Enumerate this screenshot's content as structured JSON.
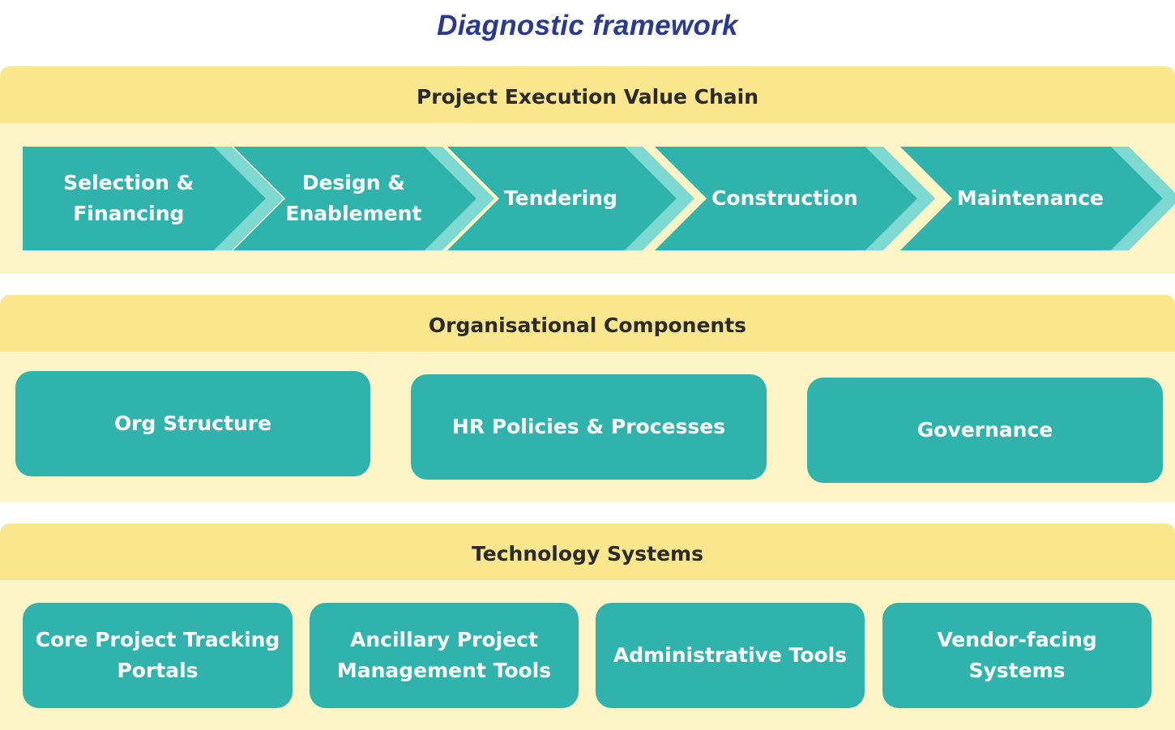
{
  "title": "Diagnostic framework",
  "colors": {
    "title": "#2a3b8f",
    "header_band": "#fae68c",
    "body_band": "#fdf5c6",
    "teal": "#31b3ad",
    "teal_light": "#7fd9d3",
    "text_light": "#ffffff",
    "text_dark": "#2b2b2b"
  },
  "sections": {
    "value_chain": {
      "header": "Project Execution Value Chain",
      "steps": [
        "Selection &\nFinancing",
        "Design &\nEnablement",
        "Tendering",
        "Construction",
        "Maintenance"
      ]
    },
    "organisational": {
      "header": "Organisational Components",
      "items": [
        "Org Structure",
        "HR Policies & Processes",
        "Governance"
      ]
    },
    "technology": {
      "header": "Technology Systems",
      "items": [
        "Core Project Tracking\nPortals",
        "Ancillary Project\nManagement Tools",
        "Administrative Tools",
        "Vendor-facing\nSystems"
      ]
    }
  }
}
